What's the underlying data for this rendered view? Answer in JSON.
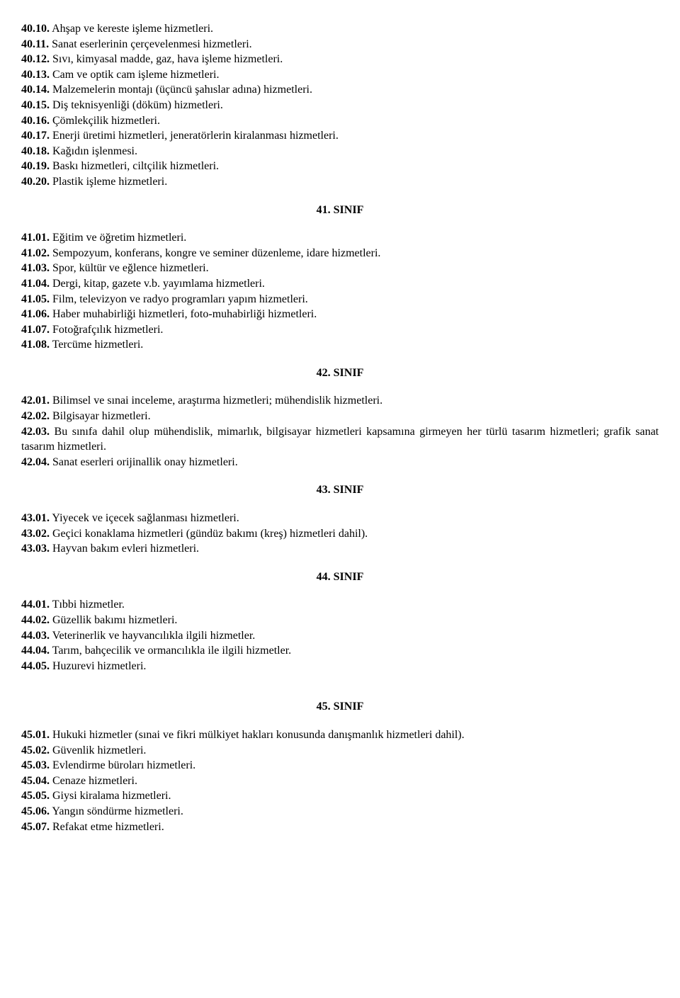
{
  "s40a": [
    {
      "num": "40.10.",
      "text": "Ahşap ve kereste işleme hizmetleri."
    },
    {
      "num": "40.11.",
      "text": "Sanat eserlerinin çerçevelenmesi hizmetleri."
    },
    {
      "num": "40.12.",
      "text": "Sıvı, kimyasal madde, gaz, hava işleme hizmetleri."
    },
    {
      "num": "40.13.",
      "text": "Cam ve optik cam işleme hizmetleri."
    },
    {
      "num": "40.14.",
      "text": "Malzemelerin montajı (üçüncü şahıslar adına) hizmetleri."
    },
    {
      "num": "40.15.",
      "text": "Diş teknisyenliği (döküm) hizmetleri."
    },
    {
      "num": "40.16.",
      "text": "Çömlekçilik hizmetleri."
    },
    {
      "num": "40.17.",
      "text": "Enerji üretimi hizmetleri, jeneratörlerin kiralanması hizmetleri."
    },
    {
      "num": "40.18.",
      "text": "Kağıdın işlenmesi."
    },
    {
      "num": "40.19.",
      "text": "Baskı hizmetleri, ciltçilik hizmetleri."
    },
    {
      "num": "40.20.",
      "text": "Plastik işleme hizmetleri."
    }
  ],
  "h41": "41. SINIF",
  "s41": [
    {
      "num": "41.01.",
      "text": "Eğitim ve öğretim hizmetleri."
    },
    {
      "num": "41.02.",
      "text": "Sempozyum, konferans, kongre ve seminer düzenleme, idare hizmetleri."
    },
    {
      "num": "41.03.",
      "text": "Spor, kültür ve eğlence hizmetleri."
    },
    {
      "num": "41.04.",
      "text": "Dergi, kitap, gazete v.b. yayımlama hizmetleri."
    },
    {
      "num": "41.05.",
      "text": "Film, televizyon ve radyo programları yapım hizmetleri."
    },
    {
      "num": "41.06.",
      "text": "Haber muhabirliği hizmetleri, foto-muhabirliği hizmetleri."
    },
    {
      "num": "41.07.",
      "text": "Fotoğrafçılık hizmetleri."
    },
    {
      "num": "41.08.",
      "text": "Tercüme hizmetleri."
    }
  ],
  "h42": "42. SINIF",
  "s42": [
    {
      "num": "42.01.",
      "text": "Bilimsel ve sınai inceleme, araştırma hizmetleri; mühendislik hizmetleri."
    },
    {
      "num": "42.02.",
      "text": "Bilgisayar hizmetleri."
    },
    {
      "num": "42.03.",
      "text": "Bu sınıfa dahil olup mühendislik, mimarlık, bilgisayar hizmetleri kapsamına girmeyen her türlü tasarım hizmetleri; grafik sanat tasarım hizmetleri."
    },
    {
      "num": "42.04.",
      "text": "Sanat eserleri orijinallik onay hizmetleri."
    }
  ],
  "h43": "43. SINIF",
  "s43": [
    {
      "num": "43.01.",
      "text": "Yiyecek ve içecek sağlanması hizmetleri."
    },
    {
      "num": "43.02.",
      "text": "Geçici konaklama hizmetleri (gündüz bakımı (kreş) hizmetleri dahil)."
    },
    {
      "num": "43.03.",
      "text": "Hayvan bakım evleri hizmetleri."
    }
  ],
  "h44": "44. SINIF",
  "s44": [
    {
      "num": "44.01.",
      "text": "Tıbbi hizmetler."
    },
    {
      "num": "44.02.",
      "text": "Güzellik bakımı hizmetleri."
    },
    {
      "num": "44.03.",
      "text": "Veterinerlik ve hayvancılıkla ilgili hizmetler."
    },
    {
      "num": "44.04.",
      "text": "Tarım, bahçecilik ve ormancılıkla ile ilgili hizmetler."
    },
    {
      "num": "44.05.",
      "text": "Huzurevi hizmetleri."
    }
  ],
  "h45": "45. SINIF",
  "s45": [
    {
      "num": "45.01.",
      "text": "Hukuki hizmetler (sınai ve fikri mülkiyet hakları konusunda danışmanlık hizmetleri dahil)."
    },
    {
      "num": "45.02.",
      "text": "Güvenlik hizmetleri."
    },
    {
      "num": "45.03.",
      "text": "Evlendirme büroları hizmetleri."
    },
    {
      "num": "45.04.",
      "text": "Cenaze hizmetleri."
    },
    {
      "num": "45.05.",
      "text": "Giysi kiralama hizmetleri."
    },
    {
      "num": "45.06.",
      "text": "Yangın söndürme hizmetleri."
    },
    {
      "num": "45.07.",
      "text": "Refakat etme hizmetleri."
    }
  ]
}
